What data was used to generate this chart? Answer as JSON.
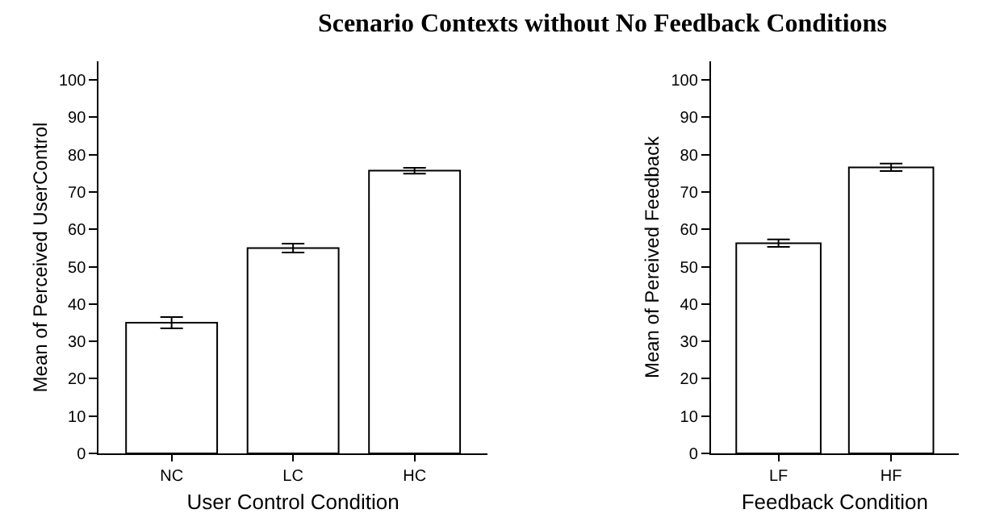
{
  "chart_data": [
    {
      "type": "bar",
      "title": "Scenario Contexts without No Feedback Conditions",
      "xlabel": "User Control Condition",
      "ylabel": "Mean of Perceived UserControl",
      "categories": [
        "NC",
        "LC",
        "HC"
      ],
      "values": [
        35,
        55,
        75.7
      ],
      "errors": [
        1.5,
        1.2,
        0.8
      ],
      "color": "#ffffff",
      "ylim": [
        0,
        105
      ],
      "yticks": [
        0,
        10,
        20,
        30,
        40,
        50,
        60,
        70,
        80,
        90,
        100
      ]
    },
    {
      "type": "bar",
      "xlabel": "Feedback Condition",
      "ylabel": "Mean of Pereived Feedback",
      "categories": [
        "LF",
        "HF"
      ],
      "values": [
        56.3,
        76.6
      ],
      "errors": [
        1.0,
        1.0
      ],
      "color": "#ffffff",
      "ylim": [
        0,
        105
      ],
      "yticks": [
        0,
        10,
        20,
        30,
        40,
        50,
        60,
        70,
        80,
        90,
        100
      ]
    }
  ]
}
